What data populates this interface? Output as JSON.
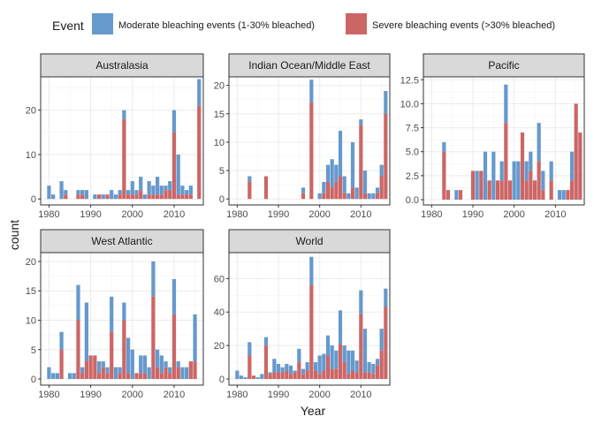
{
  "chart_data": {
    "type": "bar",
    "stacked": true,
    "xlabel": "Year",
    "ylabel": "count",
    "legend": {
      "title": "Event",
      "placement": "top",
      "entries": [
        {
          "key": "moderate",
          "label": "Moderate bleaching events (1-30% bleached)",
          "color": "#6699cc"
        },
        {
          "key": "severe",
          "label": "Severe bleaching events (>30% bleached)",
          "color": "#cc6666"
        }
      ]
    },
    "grid": true,
    "xlim": [
      1978,
      2017
    ],
    "xticks": [
      "1980",
      "1990",
      "2000",
      "2010"
    ],
    "panels": [
      {
        "title": "Australasia",
        "ylim": [
          -1.35,
          27.5
        ],
        "yticks": [
          "0",
          "10",
          "20"
        ],
        "bars": [
          {
            "year": 1980,
            "severe": 0,
            "moderate": 3
          },
          {
            "year": 1981,
            "severe": 0,
            "moderate": 1
          },
          {
            "year": 1982,
            "severe": 0,
            "moderate": 0
          },
          {
            "year": 1983,
            "severe": 0,
            "moderate": 4
          },
          {
            "year": 1984,
            "severe": 1,
            "moderate": 1
          },
          {
            "year": 1985,
            "severe": 0,
            "moderate": 0
          },
          {
            "year": 1986,
            "severe": 0,
            "moderate": 0
          },
          {
            "year": 1987,
            "severe": 1,
            "moderate": 1
          },
          {
            "year": 1988,
            "severe": 1,
            "moderate": 1
          },
          {
            "year": 1989,
            "severe": 0,
            "moderate": 2
          },
          {
            "year": 1990,
            "severe": 0,
            "moderate": 0
          },
          {
            "year": 1991,
            "severe": 0,
            "moderate": 1
          },
          {
            "year": 1992,
            "severe": 1,
            "moderate": 0
          },
          {
            "year": 1993,
            "severe": 0,
            "moderate": 1
          },
          {
            "year": 1994,
            "severe": 1,
            "moderate": 0
          },
          {
            "year": 1995,
            "severe": 0,
            "moderate": 2
          },
          {
            "year": 1996,
            "severe": 0,
            "moderate": 1
          },
          {
            "year": 1997,
            "severe": 1,
            "moderate": 1
          },
          {
            "year": 1998,
            "severe": 18,
            "moderate": 2
          },
          {
            "year": 1999,
            "severe": 1,
            "moderate": 1
          },
          {
            "year": 2000,
            "severe": 1,
            "moderate": 3
          },
          {
            "year": 2001,
            "severe": 1,
            "moderate": 1
          },
          {
            "year": 2002,
            "severe": 2,
            "moderate": 3
          },
          {
            "year": 2003,
            "severe": 0,
            "moderate": 1
          },
          {
            "year": 2004,
            "severe": 1,
            "moderate": 3
          },
          {
            "year": 2005,
            "severe": 1,
            "moderate": 2
          },
          {
            "year": 2006,
            "severe": 1,
            "moderate": 4
          },
          {
            "year": 2007,
            "severe": 1,
            "moderate": 2
          },
          {
            "year": 2008,
            "severe": 2,
            "moderate": 1
          },
          {
            "year": 2009,
            "severe": 2,
            "moderate": 2
          },
          {
            "year": 2010,
            "severe": 15,
            "moderate": 5
          },
          {
            "year": 2011,
            "severe": 1,
            "moderate": 9
          },
          {
            "year": 2012,
            "severe": 1,
            "moderate": 2
          },
          {
            "year": 2013,
            "severe": 1,
            "moderate": 1
          },
          {
            "year": 2014,
            "severe": 1,
            "moderate": 2
          },
          {
            "year": 2015,
            "severe": 0,
            "moderate": 0
          },
          {
            "year": 2016,
            "severe": 21,
            "moderate": 6
          }
        ]
      },
      {
        "title": "Indian Ocean/Middle East",
        "ylim": [
          -1.05,
          21.5
        ],
        "yticks": [
          "0",
          "5",
          "10",
          "15",
          "20"
        ],
        "bars": [
          {
            "year": 1983,
            "severe": 3,
            "moderate": 1
          },
          {
            "year": 1987,
            "severe": 4,
            "moderate": 0
          },
          {
            "year": 1996,
            "severe": 1,
            "moderate": 1
          },
          {
            "year": 1998,
            "severe": 17,
            "moderate": 4
          },
          {
            "year": 1999,
            "severe": 0,
            "moderate": 0
          },
          {
            "year": 2000,
            "severe": 0,
            "moderate": 1
          },
          {
            "year": 2001,
            "severe": 1,
            "moderate": 2
          },
          {
            "year": 2002,
            "severe": 3,
            "moderate": 3
          },
          {
            "year": 2003,
            "severe": 2,
            "moderate": 5
          },
          {
            "year": 2004,
            "severe": 3,
            "moderate": 3
          },
          {
            "year": 2005,
            "severe": 4,
            "moderate": 8
          },
          {
            "year": 2006,
            "severe": 1,
            "moderate": 3
          },
          {
            "year": 2007,
            "severe": 0,
            "moderate": 1
          },
          {
            "year": 2008,
            "severe": 2,
            "moderate": 8
          },
          {
            "year": 2009,
            "severe": 0,
            "moderate": 2
          },
          {
            "year": 2010,
            "severe": 13,
            "moderate": 1
          },
          {
            "year": 2011,
            "severe": 1,
            "moderate": 4
          },
          {
            "year": 2012,
            "severe": 0,
            "moderate": 1
          },
          {
            "year": 2013,
            "severe": 0,
            "moderate": 1
          },
          {
            "year": 2014,
            "severe": 1,
            "moderate": 1
          },
          {
            "year": 2015,
            "severe": 4,
            "moderate": 2
          },
          {
            "year": 2016,
            "severe": 15,
            "moderate": 4
          }
        ]
      },
      {
        "title": "Pacific",
        "ylim": [
          -0.55,
          12.8
        ],
        "yticks": [
          "0.0",
          "2.5",
          "5.0",
          "7.5",
          "10.0",
          "12.5"
        ],
        "bars": [
          {
            "year": 1983,
            "severe": 5,
            "moderate": 1
          },
          {
            "year": 1984,
            "severe": 1,
            "moderate": 0
          },
          {
            "year": 1986,
            "severe": 0,
            "moderate": 1
          },
          {
            "year": 1987,
            "severe": 1,
            "moderate": 0
          },
          {
            "year": 1990,
            "severe": 3,
            "moderate": 0
          },
          {
            "year": 1991,
            "severe": 0,
            "moderate": 3
          },
          {
            "year": 1992,
            "severe": 3,
            "moderate": 0
          },
          {
            "year": 1993,
            "severe": 0,
            "moderate": 5
          },
          {
            "year": 1994,
            "severe": 2,
            "moderate": 0
          },
          {
            "year": 1995,
            "severe": 0,
            "moderate": 5
          },
          {
            "year": 1996,
            "severe": 2,
            "moderate": 0
          },
          {
            "year": 1997,
            "severe": 2,
            "moderate": 2
          },
          {
            "year": 1998,
            "severe": 8,
            "moderate": 4
          },
          {
            "year": 1999,
            "severe": 2,
            "moderate": 0
          },
          {
            "year": 2000,
            "severe": 0,
            "moderate": 4
          },
          {
            "year": 2001,
            "severe": 0,
            "moderate": 4
          },
          {
            "year": 2002,
            "severe": 7,
            "moderate": 0
          },
          {
            "year": 2003,
            "severe": 2,
            "moderate": 2
          },
          {
            "year": 2004,
            "severe": 3,
            "moderate": 2
          },
          {
            "year": 2005,
            "severe": 2,
            "moderate": 0
          },
          {
            "year": 2006,
            "severe": 4,
            "moderate": 4
          },
          {
            "year": 2007,
            "severe": 1,
            "moderate": 2
          },
          {
            "year": 2008,
            "severe": 0,
            "moderate": 0
          },
          {
            "year": 2009,
            "severe": 2,
            "moderate": 2
          },
          {
            "year": 2010,
            "severe": 0,
            "moderate": 0
          },
          {
            "year": 2011,
            "severe": 0,
            "moderate": 1
          },
          {
            "year": 2012,
            "severe": 0,
            "moderate": 1
          },
          {
            "year": 2013,
            "severe": 1,
            "moderate": 0
          },
          {
            "year": 2014,
            "severe": 2,
            "moderate": 3
          },
          {
            "year": 2015,
            "severe": 10,
            "moderate": 0
          },
          {
            "year": 2016,
            "severe": 7,
            "moderate": 0
          }
        ]
      },
      {
        "title": "West Atlantic",
        "ylim": [
          -1.05,
          21.5
        ],
        "yticks": [
          "0",
          "5",
          "10",
          "15",
          "20"
        ],
        "bars": [
          {
            "year": 1980,
            "severe": 0,
            "moderate": 2
          },
          {
            "year": 1981,
            "severe": 0,
            "moderate": 1
          },
          {
            "year": 1982,
            "severe": 0,
            "moderate": 1
          },
          {
            "year": 1983,
            "severe": 5,
            "moderate": 3
          },
          {
            "year": 1985,
            "severe": 0,
            "moderate": 1
          },
          {
            "year": 1986,
            "severe": 0,
            "moderate": 1
          },
          {
            "year": 1987,
            "severe": 10,
            "moderate": 6
          },
          {
            "year": 1988,
            "severe": 1,
            "moderate": 1
          },
          {
            "year": 1989,
            "severe": 3,
            "moderate": 10
          },
          {
            "year": 1990,
            "severe": 4,
            "moderate": 0
          },
          {
            "year": 1991,
            "severe": 4,
            "moderate": 0
          },
          {
            "year": 1992,
            "severe": 1,
            "moderate": 2
          },
          {
            "year": 1993,
            "severe": 2,
            "moderate": 1
          },
          {
            "year": 1994,
            "severe": 1,
            "moderate": 1
          },
          {
            "year": 1995,
            "severe": 8,
            "moderate": 6
          },
          {
            "year": 1996,
            "severe": 0,
            "moderate": 2
          },
          {
            "year": 1997,
            "severe": 1,
            "moderate": 1
          },
          {
            "year": 1998,
            "severe": 10,
            "moderate": 3
          },
          {
            "year": 1999,
            "severe": 1,
            "moderate": 6
          },
          {
            "year": 2000,
            "severe": 0,
            "moderate": 5
          },
          {
            "year": 2001,
            "severe": 1,
            "moderate": 0
          },
          {
            "year": 2002,
            "severe": 1,
            "moderate": 3
          },
          {
            "year": 2003,
            "severe": 1,
            "moderate": 3
          },
          {
            "year": 2004,
            "severe": 0,
            "moderate": 2
          },
          {
            "year": 2005,
            "severe": 14,
            "moderate": 6
          },
          {
            "year": 2006,
            "severe": 2,
            "moderate": 3
          },
          {
            "year": 2007,
            "severe": 1,
            "moderate": 3
          },
          {
            "year": 2008,
            "severe": 2,
            "moderate": 1
          },
          {
            "year": 2009,
            "severe": 1,
            "moderate": 1
          },
          {
            "year": 2010,
            "severe": 11,
            "moderate": 6
          },
          {
            "year": 2011,
            "severe": 2,
            "moderate": 1
          },
          {
            "year": 2012,
            "severe": 0,
            "moderate": 2
          },
          {
            "year": 2013,
            "severe": 0,
            "moderate": 2
          },
          {
            "year": 2014,
            "severe": 3,
            "moderate": 0
          },
          {
            "year": 2015,
            "severe": 3,
            "moderate": 8
          }
        ]
      },
      {
        "title": "World",
        "ylim": [
          -3.7,
          75.5
        ],
        "yticks": [
          "0",
          "20",
          "40",
          "60"
        ],
        "bars": [
          {
            "year": 1980,
            "severe": 0,
            "moderate": 5
          },
          {
            "year": 1981,
            "severe": 0,
            "moderate": 2
          },
          {
            "year": 1982,
            "severe": 0,
            "moderate": 1
          },
          {
            "year": 1983,
            "severe": 14,
            "moderate": 8
          },
          {
            "year": 1984,
            "severe": 2,
            "moderate": 0
          },
          {
            "year": 1985,
            "severe": 0,
            "moderate": 1
          },
          {
            "year": 1986,
            "severe": 0,
            "moderate": 3
          },
          {
            "year": 1987,
            "severe": 20,
            "moderate": 5
          },
          {
            "year": 1988,
            "severe": 3,
            "moderate": 1
          },
          {
            "year": 1989,
            "severe": 4,
            "moderate": 8
          },
          {
            "year": 1990,
            "severe": 4,
            "moderate": 5
          },
          {
            "year": 1991,
            "severe": 4,
            "moderate": 3
          },
          {
            "year": 1992,
            "severe": 5,
            "moderate": 4
          },
          {
            "year": 1993,
            "severe": 3,
            "moderate": 5
          },
          {
            "year": 1994,
            "severe": 4,
            "moderate": 1
          },
          {
            "year": 1995,
            "severe": 10,
            "moderate": 8
          },
          {
            "year": 1996,
            "severe": 3,
            "moderate": 3
          },
          {
            "year": 1997,
            "severe": 5,
            "moderate": 5
          },
          {
            "year": 1998,
            "severe": 56,
            "moderate": 17
          },
          {
            "year": 1999,
            "severe": 5,
            "moderate": 5
          },
          {
            "year": 2000,
            "severe": 3,
            "moderate": 11
          },
          {
            "year": 2001,
            "severe": 5,
            "moderate": 10
          },
          {
            "year": 2002,
            "severe": 14,
            "moderate": 12
          },
          {
            "year": 2003,
            "severe": 6,
            "moderate": 14
          },
          {
            "year": 2004,
            "severe": 6,
            "moderate": 11
          },
          {
            "year": 2005,
            "severe": 21,
            "moderate": 20
          },
          {
            "year": 2006,
            "severe": 10,
            "moderate": 10
          },
          {
            "year": 2007,
            "severe": 3,
            "moderate": 14
          },
          {
            "year": 2008,
            "severe": 5,
            "moderate": 12
          },
          {
            "year": 2009,
            "severe": 4,
            "moderate": 7
          },
          {
            "year": 2010,
            "severe": 39,
            "moderate": 14
          },
          {
            "year": 2011,
            "severe": 4,
            "moderate": 26
          },
          {
            "year": 2012,
            "severe": 4,
            "moderate": 6
          },
          {
            "year": 2013,
            "severe": 3,
            "moderate": 6
          },
          {
            "year": 2014,
            "severe": 8,
            "moderate": 4
          },
          {
            "year": 2015,
            "severe": 17,
            "moderate": 13
          },
          {
            "year": 2016,
            "severe": 43,
            "moderate": 11
          }
        ]
      }
    ]
  }
}
